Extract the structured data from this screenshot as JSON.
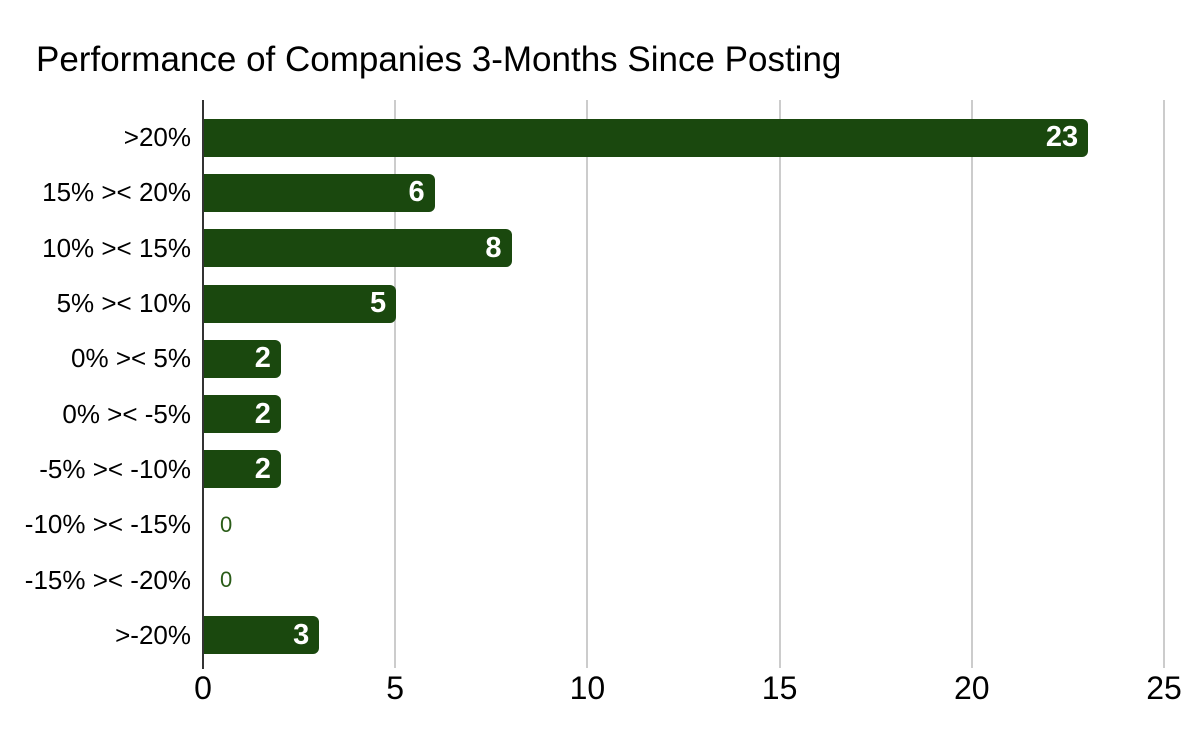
{
  "colors": {
    "background": "#ffffff",
    "bar": "#1a480e",
    "value_label": "#ffffff",
    "zero_label": "#2a5c18",
    "gridline": "#cccccc",
    "axis_line": "#333333",
    "text": "#000000"
  },
  "chart_data": {
    "type": "bar",
    "orientation": "horizontal",
    "title": "Performance of Companies 3-Months Since Posting",
    "categories": [
      ">20%",
      "15% >< 20%",
      "10% >< 15%",
      "5% >< 10%",
      "0% >< 5%",
      "0% >< -5%",
      "-5% >< -10%",
      "-10% >< -15%",
      "-15% >< -20%",
      ">-20%"
    ],
    "values": [
      23,
      6,
      8,
      5,
      2,
      2,
      2,
      0,
      0,
      3
    ],
    "xlabel": "",
    "ylabel": "",
    "xlim": [
      0,
      25
    ],
    "xticks": [
      0,
      5,
      10,
      15,
      20,
      25
    ],
    "grid": "vertical",
    "legend": "none",
    "data_labels": "inside-end, white; zero values shown in green outside bar"
  }
}
